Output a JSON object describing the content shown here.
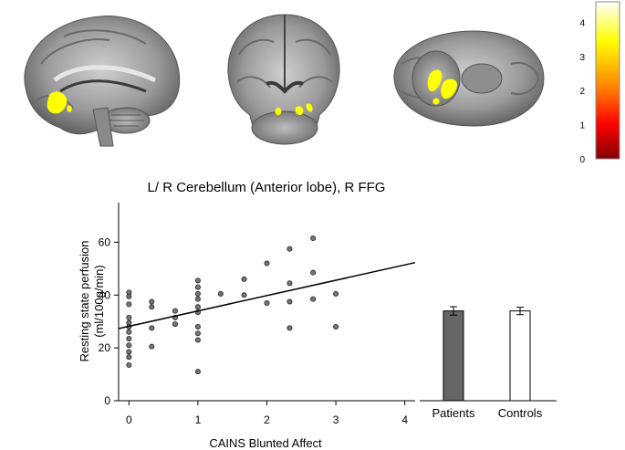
{
  "colorbar": {
    "ticks": [
      "4",
      "3",
      "2",
      "1",
      "0"
    ],
    "tick_values": [
      4,
      3,
      2,
      1,
      0
    ],
    "range": [
      0,
      4.6
    ],
    "colors": [
      "#ffffff",
      "#ffff00",
      "#ff8000",
      "#ff0000",
      "#800000"
    ]
  },
  "chart_data": [
    {
      "type": "scatter",
      "title": "L/ R Cerebellum (Anterior lobe), R FFG",
      "xlabel": "CAINS Blunted Affect",
      "ylabel": "Resting state perfusion",
      "ylabel_units": "(ml/100g/min)",
      "xlim": [
        -0.15,
        4.15
      ],
      "ylim": [
        0,
        75
      ],
      "xticks": [
        "0",
        "1",
        "2",
        "3",
        "4"
      ],
      "xtick_values": [
        0,
        1,
        2,
        3,
        4
      ],
      "yticks": [
        "0",
        "20",
        "40",
        "60"
      ],
      "ytick_values": [
        0,
        20,
        40,
        60
      ],
      "points": [
        [
          0,
          41
        ],
        [
          0,
          39.5
        ],
        [
          0,
          36.5
        ],
        [
          0,
          31.5
        ],
        [
          0,
          29.5
        ],
        [
          0,
          28
        ],
        [
          0,
          26
        ],
        [
          0,
          23.5
        ],
        [
          0,
          21
        ],
        [
          0,
          18.5
        ],
        [
          0,
          16.5
        ],
        [
          0,
          13.5
        ],
        [
          0.33,
          37.5
        ],
        [
          0.33,
          35.5
        ],
        [
          0.33,
          27.5
        ],
        [
          0.33,
          20.5
        ],
        [
          0.67,
          34
        ],
        [
          0.67,
          31.5
        ],
        [
          0.67,
          29
        ],
        [
          1,
          45.5
        ],
        [
          1,
          43
        ],
        [
          1,
          40.5
        ],
        [
          1,
          38.5
        ],
        [
          1,
          35.5
        ],
        [
          1,
          33.5
        ],
        [
          1,
          28
        ],
        [
          1,
          25.5
        ],
        [
          1,
          23
        ],
        [
          1,
          11
        ],
        [
          1.33,
          40.5
        ],
        [
          1.67,
          46
        ],
        [
          1.67,
          40
        ],
        [
          2,
          52
        ],
        [
          2,
          37
        ],
        [
          2.33,
          57.5
        ],
        [
          2.33,
          44.5
        ],
        [
          2.33,
          37.5
        ],
        [
          2.33,
          27.5
        ],
        [
          2.67,
          61.5
        ],
        [
          2.67,
          48.5
        ],
        [
          2.67,
          38.5
        ],
        [
          3,
          40.5
        ],
        [
          3,
          28
        ]
      ],
      "fit_line": {
        "x": [
          -0.15,
          4.15
        ],
        "y": [
          27.3,
          52.3
        ]
      }
    },
    {
      "type": "bar",
      "categories": [
        "Patients",
        "Controls"
      ],
      "values": [
        34,
        34
      ],
      "errors": [
        1.6,
        1.4
      ],
      "ylim": [
        0,
        75
      ],
      "colors": [
        "#666666",
        "#ffffff"
      ]
    }
  ]
}
